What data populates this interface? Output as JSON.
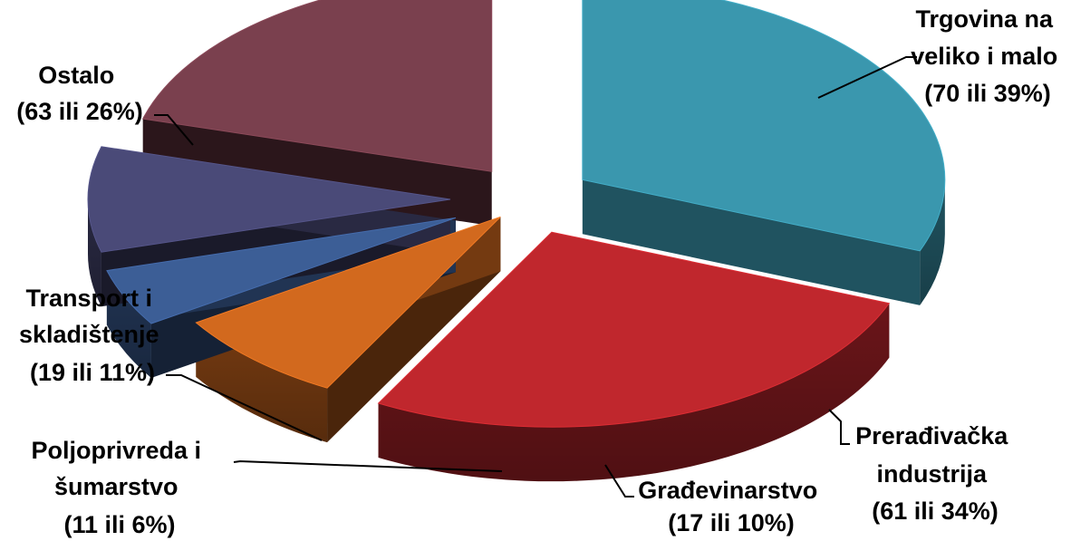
{
  "chart_data": {
    "type": "pie",
    "style": "3d-exploded",
    "title": "",
    "slices": [
      {
        "label": "Trgovina na veliko i malo",
        "count": 70,
        "percent": 39,
        "label_lines": [
          "Trgovina na",
          "veliko i malo",
          "(70 ili 39%)"
        ],
        "color": "#3A97AE"
      },
      {
        "label": "Prerađivačka industrija",
        "count": 61,
        "percent": 34,
        "label_lines": [
          "Prerađivačka",
          "industrija",
          "(61 ili 34%)"
        ],
        "color": "#C0272D"
      },
      {
        "label": "Građevinarstvo",
        "count": 17,
        "percent": 10,
        "label_lines": [
          "Građevinarstvo",
          "(17 ili  10%)"
        ],
        "color": "#D2691E"
      },
      {
        "label": "Poljoprivreda i šumarstvo",
        "count": 11,
        "percent": 6,
        "label_lines": [
          "Poljoprivreda i",
          "šumarstvo",
          "(11 ili 6%)"
        ],
        "color": "#3C5E96"
      },
      {
        "label": "Transport i skladištenje",
        "count": 19,
        "percent": 11,
        "label_lines": [
          "Transport i",
          "skladištenje",
          "(19 ili 11%)"
        ],
        "color": "#4A4A78"
      },
      {
        "label": "Ostalo",
        "count": 63,
        "percent": 26,
        "label_lines": [
          "Ostalo",
          "(63 ili 26%)"
        ],
        "color": "#7A404E"
      }
    ]
  }
}
